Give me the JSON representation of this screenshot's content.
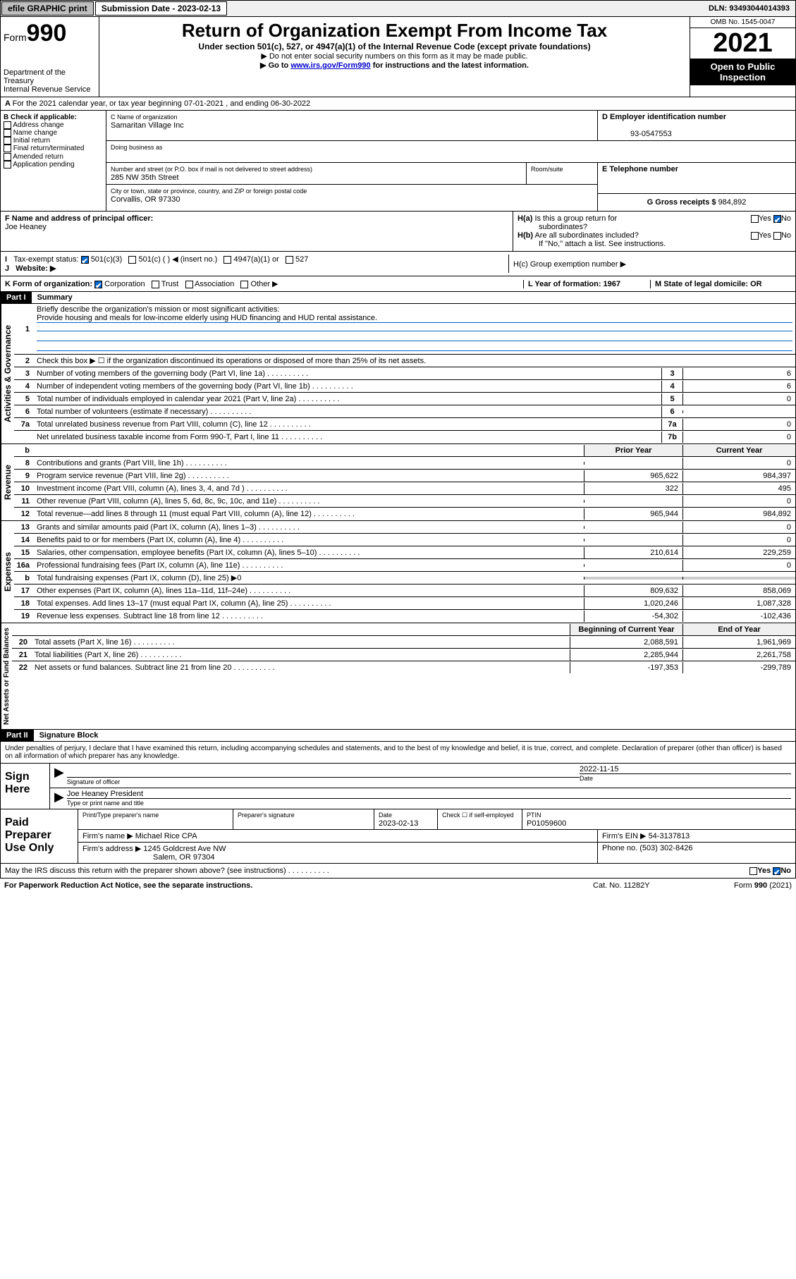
{
  "topbar": {
    "btn1": "efile GRAPHIC print",
    "sub_label": "Submission Date - 2023-02-13",
    "dln": "DLN: 93493044014393"
  },
  "header": {
    "form_word": "Form",
    "form_num": "990",
    "dept": "Department of the Treasury",
    "irs": "Internal Revenue Service",
    "title": "Return of Organization Exempt From Income Tax",
    "subtitle": "Under section 501(c), 527, or 4947(a)(1) of the Internal Revenue Code (except private foundations)",
    "note1": "▶ Do not enter social security numbers on this form as it may be made public.",
    "note2_pre": "▶ Go to ",
    "note2_link": "www.irs.gov/Form990",
    "note2_post": " for instructions and the latest information.",
    "omb": "OMB No. 1545-0047",
    "year": "2021",
    "inspection": "Open to Public Inspection"
  },
  "lineA": "For the 2021 calendar year, or tax year beginning 07-01-2021    , and ending 06-30-2022",
  "sectionB": {
    "title": "B Check if applicable:",
    "opts": [
      "Address change",
      "Name change",
      "Initial return",
      "Final return/terminated",
      "Amended return",
      "Application pending"
    ]
  },
  "sectionC": {
    "name_label": "C Name of organization",
    "name": "Samaritan Village Inc",
    "dba_label": "Doing business as",
    "street_label": "Number and street (or P.O. box if mail is not delivered to street address)",
    "street": "285 NW 35th Street",
    "room_label": "Room/suite",
    "city_label": "City or town, state or province, country, and ZIP or foreign postal code",
    "city": "Corvallis, OR  97330"
  },
  "sectionD": {
    "label": "D Employer identification number",
    "ein": "93-0547553"
  },
  "sectionE": {
    "label": "E Telephone number"
  },
  "sectionG": {
    "label": "G Gross receipts $",
    "val": "984,892"
  },
  "sectionF": {
    "label": "F  Name and address of principal officer:",
    "name": "Joe Heaney"
  },
  "sectionH": {
    "ha": "H(a)  Is this a group return for subordinates?",
    "hb": "H(b)  Are all subordinates included?",
    "hb_note": "If \"No,\" attach a list. See instructions.",
    "hc": "H(c)  Group exemption number ▶",
    "yes": "Yes",
    "no": "No"
  },
  "sectionI": {
    "label": "Tax-exempt status:",
    "opt1": "501(c)(3)",
    "opt2": "501(c) (   ) ◀ (insert no.)",
    "opt3": "4947(a)(1) or",
    "opt4": "527"
  },
  "sectionJ": {
    "label": "Website: ▶"
  },
  "sectionK": {
    "label": "K Form of organization:",
    "opts": [
      "Corporation",
      "Trust",
      "Association",
      "Other ▶"
    ]
  },
  "sectionL": {
    "label": "L Year of formation: 1967"
  },
  "sectionM": {
    "label": "M State of legal domicile: OR"
  },
  "part1": {
    "header": "Part I",
    "title": "Summary",
    "tab_activities": "Activities & Governance",
    "tab_revenue": "Revenue",
    "tab_expenses": "Expenses",
    "tab_netassets": "Net Assets or Fund Balances",
    "l1": "Briefly describe the organization's mission or most significant activities:",
    "l1_text": "Provide housing and meals for low-income elderly using HUD financing and HUD rental assistance.",
    "l2": "Check this box ▶ ☐  if the organization discontinued its operations or disposed of more than 25% of its net assets.",
    "lines_gov": [
      {
        "n": "3",
        "t": "Number of voting members of the governing body (Part VI, line 1a)",
        "box": "3",
        "v": "6"
      },
      {
        "n": "4",
        "t": "Number of independent voting members of the governing body (Part VI, line 1b)",
        "box": "4",
        "v": "6"
      },
      {
        "n": "5",
        "t": "Total number of individuals employed in calendar year 2021 (Part V, line 2a)",
        "box": "5",
        "v": "0"
      },
      {
        "n": "6",
        "t": "Total number of volunteers (estimate if necessary)",
        "box": "6",
        "v": ""
      },
      {
        "n": "7a",
        "t": "Total unrelated business revenue from Part VIII, column (C), line 12",
        "box": "7a",
        "v": "0"
      },
      {
        "n": "",
        "t": "Net unrelated business taxable income from Form 990-T, Part I, line 11",
        "box": "7b",
        "v": "0"
      }
    ],
    "col_prior": "Prior Year",
    "col_current": "Current Year",
    "lines_rev": [
      {
        "n": "8",
        "t": "Contributions and grants (Part VIII, line 1h)",
        "p": "",
        "c": "0"
      },
      {
        "n": "9",
        "t": "Program service revenue (Part VIII, line 2g)",
        "p": "965,622",
        "c": "984,397"
      },
      {
        "n": "10",
        "t": "Investment income (Part VIII, column (A), lines 3, 4, and 7d )",
        "p": "322",
        "c": "495"
      },
      {
        "n": "11",
        "t": "Other revenue (Part VIII, column (A), lines 5, 6d, 8c, 9c, 10c, and 11e)",
        "p": "",
        "c": "0"
      },
      {
        "n": "12",
        "t": "Total revenue—add lines 8 through 11 (must equal Part VIII, column (A), line 12)",
        "p": "965,944",
        "c": "984,892"
      }
    ],
    "lines_exp": [
      {
        "n": "13",
        "t": "Grants and similar amounts paid (Part IX, column (A), lines 1–3)",
        "p": "",
        "c": "0"
      },
      {
        "n": "14",
        "t": "Benefits paid to or for members (Part IX, column (A), line 4)",
        "p": "",
        "c": "0"
      },
      {
        "n": "15",
        "t": "Salaries, other compensation, employee benefits (Part IX, column (A), lines 5–10)",
        "p": "210,614",
        "c": "229,259"
      },
      {
        "n": "16a",
        "t": "Professional fundraising fees (Part IX, column (A), line 11e)",
        "p": "",
        "c": "0"
      },
      {
        "n": "b",
        "t": "Total fundraising expenses (Part IX, column (D), line 25) ▶0",
        "p": null,
        "c": null
      },
      {
        "n": "17",
        "t": "Other expenses (Part IX, column (A), lines 11a–11d, 11f–24e)",
        "p": "809,632",
        "c": "858,069"
      },
      {
        "n": "18",
        "t": "Total expenses. Add lines 13–17 (must equal Part IX, column (A), line 25)",
        "p": "1,020,246",
        "c": "1,087,328"
      },
      {
        "n": "19",
        "t": "Revenue less expenses. Subtract line 18 from line 12",
        "p": "-54,302",
        "c": "-102,436"
      }
    ],
    "col_begin": "Beginning of Current Year",
    "col_end": "End of Year",
    "lines_net": [
      {
        "n": "20",
        "t": "Total assets (Part X, line 16)",
        "p": "2,088,591",
        "c": "1,961,969"
      },
      {
        "n": "21",
        "t": "Total liabilities (Part X, line 26)",
        "p": "2,285,944",
        "c": "2,261,758"
      },
      {
        "n": "22",
        "t": "Net assets or fund balances. Subtract line 21 from line 20",
        "p": "-197,353",
        "c": "-299,789"
      }
    ]
  },
  "part2": {
    "header": "Part II",
    "title": "Signature Block",
    "declare": "Under penalties of perjury, I declare that I have examined this return, including accompanying schedules and statements, and to the best of my knowledge and belief, it is true, correct, and complete. Declaration of preparer (other than officer) is based on all information of which preparer has any knowledge.",
    "sign_here": "Sign Here",
    "sig_officer": "Signature of officer",
    "sig_date": "Date",
    "sig_date_val": "2022-11-15",
    "sig_name": "Joe Heaney  President",
    "sig_name_label": "Type or print name and title",
    "paid": "Paid Preparer Use Only",
    "prep_name_label": "Print/Type preparer's name",
    "prep_sig_label": "Preparer's signature",
    "prep_date_label": "Date",
    "prep_date": "2023-02-13",
    "prep_check": "Check ☐ if self-employed",
    "prep_ptin_label": "PTIN",
    "prep_ptin": "P01059600",
    "firm_name_label": "Firm's name     ▶",
    "firm_name": "Michael Rice CPA",
    "firm_ein_label": "Firm's EIN ▶",
    "firm_ein": "54-3137813",
    "firm_addr_label": "Firm's address ▶",
    "firm_addr1": "1245 Goldcrest Ave NW",
    "firm_addr2": "Salem, OR  97304",
    "firm_phone_label": "Phone no.",
    "firm_phone": "(503) 302-8426",
    "discuss": "May the IRS discuss this return with the preparer shown above? (see instructions)"
  },
  "footer": {
    "pra": "For Paperwork Reduction Act Notice, see the separate instructions.",
    "cat": "Cat. No. 11282Y",
    "form": "Form 990 (2021)"
  }
}
